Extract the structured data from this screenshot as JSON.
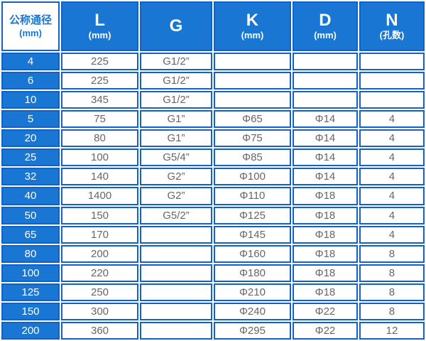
{
  "table": {
    "columns": [
      {
        "id": "dn",
        "title": "公称通径",
        "unit": "(mm)"
      },
      {
        "id": "l",
        "title": "L",
        "unit": "(mm)"
      },
      {
        "id": "g",
        "title": "G",
        "unit": ""
      },
      {
        "id": "k",
        "title": "K",
        "unit": "(mm)"
      },
      {
        "id": "d",
        "title": "D",
        "unit": "(mm)"
      },
      {
        "id": "n",
        "title": "N",
        "unit": "(孔数)"
      }
    ],
    "rows": [
      [
        "4",
        "225",
        "G1/2”",
        "",
        "",
        ""
      ],
      [
        "6",
        "225",
        "G1/2”",
        "",
        "",
        ""
      ],
      [
        "10",
        "345",
        "G1/2”",
        "",
        "",
        ""
      ],
      [
        "5",
        "75",
        "G1”",
        "Φ65",
        "Φ14",
        "4"
      ],
      [
        "20",
        "80",
        "G1”",
        "Φ75",
        "Φ14",
        "4"
      ],
      [
        "25",
        "100",
        "G5/4”",
        "Φ85",
        "Φ14",
        "4"
      ],
      [
        "32",
        "140",
        "G2”",
        "Φ100",
        "Φ14",
        "4"
      ],
      [
        "40",
        "1400",
        "G2”",
        "Φ110",
        "Φ18",
        "4"
      ],
      [
        "50",
        "150",
        "G5/2”",
        "Φ125",
        "Φ18",
        "4"
      ],
      [
        "65",
        "170",
        "",
        "Φ145",
        "Φ18",
        "4"
      ],
      [
        "80",
        "200",
        "",
        "Φ160",
        "Φ18",
        "8"
      ],
      [
        "100",
        "220",
        "",
        "Φ180",
        "Φ18",
        "8"
      ],
      [
        "125",
        "250",
        "",
        "Φ210",
        "Φ18",
        "8"
      ],
      [
        "150",
        "300",
        "",
        "Φ240",
        "Φ22",
        "8"
      ],
      [
        "200",
        "360",
        "",
        "Φ295",
        "Φ22",
        "12"
      ]
    ],
    "column_widths_pct": [
      14.0,
      18.6,
      17.4,
      18.6,
      15.7,
      15.7
    ]
  },
  "colors": {
    "fill_blue": "#1976d2",
    "border_blue": "#1062c8",
    "text_gray": "#666666"
  }
}
